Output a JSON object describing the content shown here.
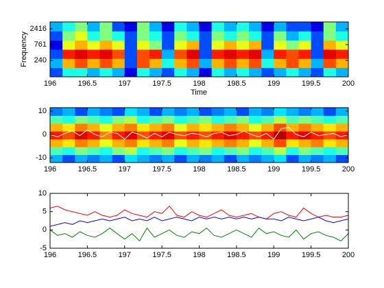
{
  "chart_data": [
    {
      "type": "heatmap",
      "colormap": "jet",
      "xlabel": "Time",
      "ylabel": "Frequency",
      "xlim": [
        196,
        200
      ],
      "xticks": [
        196,
        196.5,
        197,
        197.5,
        198,
        198.5,
        199,
        199.5,
        200
      ],
      "ylim": [
        72,
        3990
      ],
      "log_y": true,
      "yticks": [
        240,
        761,
        2416
      ],
      "z": [
        [
          0.2,
          0.4,
          0.4,
          0.3,
          0.4,
          0.3,
          0.1,
          0.4,
          0.3,
          0.2,
          0.4,
          0.3,
          0.1,
          0.4,
          0.3,
          0.4,
          0.3,
          0.2,
          0.3,
          0.4,
          0.3,
          0.2,
          0.4,
          0.3
        ],
        [
          0.3,
          0.7,
          0.8,
          0.7,
          0.8,
          0.7,
          0.2,
          0.8,
          0.7,
          0.4,
          0.7,
          0.8,
          0.3,
          0.7,
          0.8,
          0.7,
          0.8,
          0.4,
          0.7,
          0.8,
          0.7,
          0.3,
          0.8,
          0.7
        ],
        [
          0.2,
          0.85,
          0.9,
          0.85,
          0.9,
          0.8,
          0.2,
          0.8,
          0.85,
          0.3,
          0.8,
          0.9,
          0.2,
          0.85,
          0.9,
          0.85,
          0.9,
          0.3,
          0.85,
          0.8,
          0.85,
          0.2,
          0.9,
          0.85
        ],
        [
          0.1,
          0.6,
          0.7,
          0.6,
          0.7,
          0.6,
          0.2,
          0.6,
          0.5,
          0.2,
          0.6,
          0.7,
          0.2,
          0.6,
          0.7,
          0.6,
          0.7,
          0.2,
          0.6,
          0.5,
          0.6,
          0.2,
          0.7,
          0.6
        ],
        [
          0.2,
          0.5,
          0.6,
          0.4,
          0.5,
          0.4,
          0.2,
          0.5,
          0.4,
          0.2,
          0.5,
          0.4,
          0.2,
          0.5,
          0.4,
          0.5,
          0.4,
          0.2,
          0.5,
          0.3,
          0.4,
          0.2,
          0.5,
          0.4
        ],
        [
          0.3,
          0.4,
          0.5,
          0.3,
          0.5,
          0.2,
          0.1,
          0.5,
          0.3,
          0.1,
          0.4,
          0.3,
          0.1,
          0.4,
          0.3,
          0.4,
          0.3,
          0.1,
          0.3,
          0.2,
          0.2,
          0.1,
          0.5,
          0.3
        ]
      ]
    },
    {
      "type": "heatmap",
      "colormap": "jet",
      "xlim": [
        196,
        200
      ],
      "xticks": [
        196,
        196.5,
        197,
        197.5,
        198,
        198.5,
        199,
        199.5,
        200
      ],
      "ylim": [
        -12,
        11.5
      ],
      "yticks": [
        -10,
        0,
        10
      ],
      "z": [
        [
          0.3,
          0.2,
          0.3,
          0.25,
          0.3,
          0.2,
          0.35,
          0.3,
          0.25,
          0.3,
          0.2,
          0.3,
          0.25,
          0.3,
          0.2,
          0.3,
          0.25,
          0.3,
          0.35,
          0.2,
          0.3,
          0.25,
          0.3,
          0.2
        ],
        [
          0.45,
          0.4,
          0.5,
          0.45,
          0.4,
          0.5,
          0.55,
          0.4,
          0.45,
          0.5,
          0.4,
          0.45,
          0.5,
          0.4,
          0.45,
          0.5,
          0.4,
          0.45,
          0.55,
          0.4,
          0.5,
          0.45,
          0.4,
          0.45
        ],
        [
          0.7,
          0.65,
          0.75,
          0.7,
          0.6,
          0.7,
          0.75,
          0.65,
          0.7,
          0.75,
          0.6,
          0.7,
          0.65,
          0.7,
          0.75,
          0.7,
          0.6,
          0.7,
          0.8,
          0.65,
          0.7,
          0.75,
          0.65,
          0.7
        ],
        [
          0.85,
          0.8,
          0.9,
          0.85,
          0.75,
          0.85,
          0.9,
          0.8,
          0.85,
          0.9,
          0.8,
          0.85,
          0.8,
          0.85,
          0.9,
          0.85,
          0.8,
          0.85,
          0.95,
          0.85,
          0.9,
          0.85,
          0.8,
          0.85
        ],
        [
          0.7,
          0.65,
          0.75,
          0.7,
          0.6,
          0.7,
          0.75,
          0.65,
          0.7,
          0.75,
          0.6,
          0.7,
          0.65,
          0.7,
          0.75,
          0.7,
          0.6,
          0.7,
          0.8,
          0.7,
          0.75,
          0.7,
          0.65,
          0.7
        ],
        [
          0.45,
          0.4,
          0.5,
          0.45,
          0.4,
          0.5,
          0.55,
          0.4,
          0.45,
          0.5,
          0.4,
          0.45,
          0.5,
          0.4,
          0.45,
          0.5,
          0.4,
          0.45,
          0.55,
          0.45,
          0.5,
          0.45,
          0.4,
          0.45
        ],
        [
          0.25,
          0.3,
          0.2,
          0.3,
          0.25,
          0.2,
          0.35,
          0.3,
          0.2,
          0.3,
          0.25,
          0.3,
          0.2,
          0.25,
          0.3,
          0.2,
          0.3,
          0.25,
          0.35,
          0.3,
          0.25,
          0.3,
          0.2,
          0.3
        ]
      ],
      "x": [
        196,
        196.1,
        196.2,
        196.3,
        196.4,
        196.5,
        196.6,
        196.7,
        196.8,
        196.9,
        197,
        197.1,
        197.2,
        197.3,
        197.4,
        197.5,
        197.6,
        197.7,
        197.8,
        197.9,
        198,
        198.1,
        198.2,
        198.3,
        198.4,
        198.5,
        198.6,
        198.7,
        198.8,
        198.9,
        199,
        199.1,
        199.2,
        199.3,
        199.4,
        199.5,
        199.6,
        199.7,
        199.8,
        199.9,
        200
      ],
      "series": [
        {
          "color": "#ffffff",
          "values": [
            0,
            -1,
            0.5,
            1.5,
            -0.5,
            2,
            0,
            -1,
            1,
            0.5,
            -2,
            1,
            0,
            -1.5,
            0.5,
            -1,
            1,
            0,
            -0.5,
            0.5,
            0,
            -1,
            0.5,
            1,
            -0.5,
            0,
            1.5,
            0,
            -1,
            0.5,
            -2,
            2.5,
            3,
            0,
            -1,
            1,
            -0.5,
            0,
            0.5,
            -1,
            0
          ]
        }
      ]
    },
    {
      "type": "line",
      "xlim": [
        196,
        200
      ],
      "xticks": [
        196,
        196.5,
        197,
        197.5,
        198,
        198.5,
        199,
        199.5,
        200
      ],
      "ylim": [
        -5,
        10
      ],
      "yticks": [
        -5,
        0,
        5,
        10
      ],
      "x": [
        196,
        196.1,
        196.2,
        196.3,
        196.4,
        196.5,
        196.6,
        196.7,
        196.8,
        196.9,
        197,
        197.1,
        197.2,
        197.3,
        197.4,
        197.5,
        197.6,
        197.7,
        197.8,
        197.9,
        198,
        198.1,
        198.2,
        198.3,
        198.4,
        198.5,
        198.6,
        198.7,
        198.8,
        198.9,
        199,
        199.1,
        199.2,
        199.3,
        199.4,
        199.5,
        199.6,
        199.7,
        199.8,
        199.9,
        200
      ],
      "series": [
        {
          "color": "#ff0000",
          "values": [
            6,
            6.5,
            5.5,
            5,
            4.5,
            4,
            5,
            4,
            3.5,
            4,
            5.5,
            4.5,
            4,
            3.5,
            5,
            4.5,
            6.5,
            4,
            3.5,
            5,
            4,
            3.5,
            4.5,
            5.5,
            4,
            3.5,
            4,
            4.5,
            3.5,
            3,
            4.5,
            5,
            4,
            3.5,
            6,
            4.5,
            3.5,
            4,
            3.5,
            3.5,
            4
          ]
        },
        {
          "color": "#0000ff",
          "values": [
            1,
            1.5,
            2,
            1.5,
            2.5,
            2,
            2.5,
            3,
            2.5,
            3,
            3.5,
            2.5,
            3,
            2.5,
            3.5,
            2.5,
            3,
            3.5,
            3,
            2.5,
            3.5,
            3,
            3.5,
            3,
            3.5,
            3,
            3.5,
            3,
            3.5,
            3,
            3,
            2.5,
            3.5,
            3,
            2.5,
            3,
            3.5,
            2.5,
            2,
            2.5,
            3
          ]
        },
        {
          "color": "#008000",
          "values": [
            0,
            -1.5,
            -1,
            -2,
            -0.5,
            -1.5,
            -2,
            -1,
            0.5,
            -1,
            -2.5,
            -1,
            -3,
            0.5,
            -2,
            -1,
            0,
            -1.5,
            -2,
            -0.5,
            -1,
            0.5,
            -1.5,
            -2,
            -1,
            0,
            -1,
            -2,
            0.5,
            -1,
            -0.5,
            -1.5,
            -2,
            0,
            -2.5,
            -1,
            -0.5,
            -1.5,
            -2,
            -3,
            -1
          ]
        }
      ]
    }
  ]
}
